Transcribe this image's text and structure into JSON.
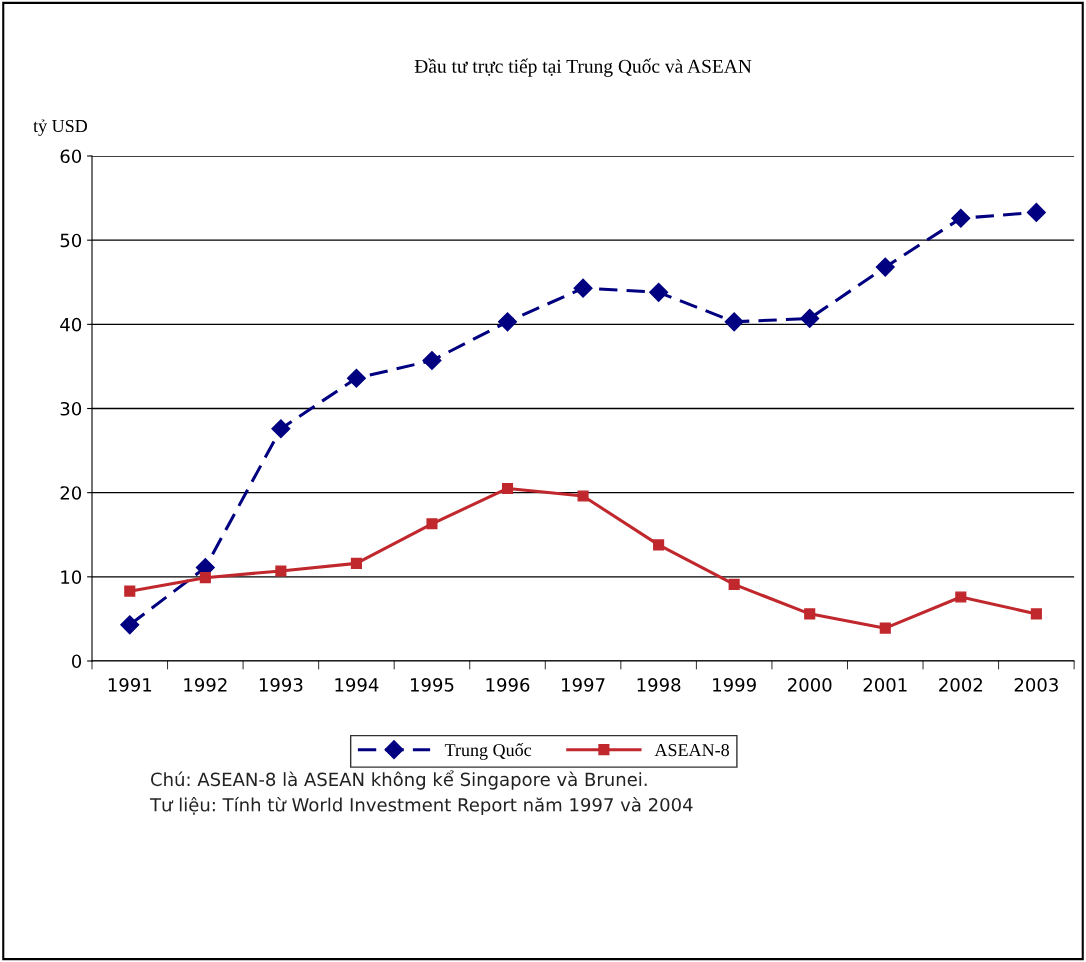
{
  "chart_data": {
    "type": "line",
    "title": "Đầu tư trực tiếp tại Trung Quốc và ASEAN",
    "ylabel": "tỷ USD",
    "categories": [
      "1991",
      "1992",
      "1993",
      "1994",
      "1995",
      "1996",
      "1997",
      "1998",
      "1999",
      "2000",
      "2001",
      "2002",
      "2003"
    ],
    "series": [
      {
        "name": "Trung Quốc",
        "color": "#000080",
        "marker": "diamond",
        "line_style": "dashed",
        "values": [
          4.3,
          11.1,
          27.6,
          33.6,
          35.7,
          40.3,
          44.3,
          43.8,
          40.3,
          40.7,
          46.8,
          52.6,
          53.3
        ]
      },
      {
        "name": "ASEAN-8",
        "color": "#c0282d",
        "marker": "square",
        "line_style": "solid",
        "values": [
          8.3,
          9.9,
          10.7,
          11.6,
          16.3,
          20.5,
          19.6,
          13.8,
          9.1,
          5.6,
          3.9,
          7.6,
          5.6
        ]
      }
    ],
    "ylim": [
      0,
      60
    ],
    "yticks": [
      0,
      10,
      20,
      30,
      40,
      50,
      60
    ],
    "grid": "y",
    "legend": "bottom",
    "annotations": [
      "Chú: ASEAN-8 là ASEAN không kể Singapore và Brunei.",
      "Tư liệu: Tính từ World Investment Report năm 1997 và 2004"
    ]
  }
}
